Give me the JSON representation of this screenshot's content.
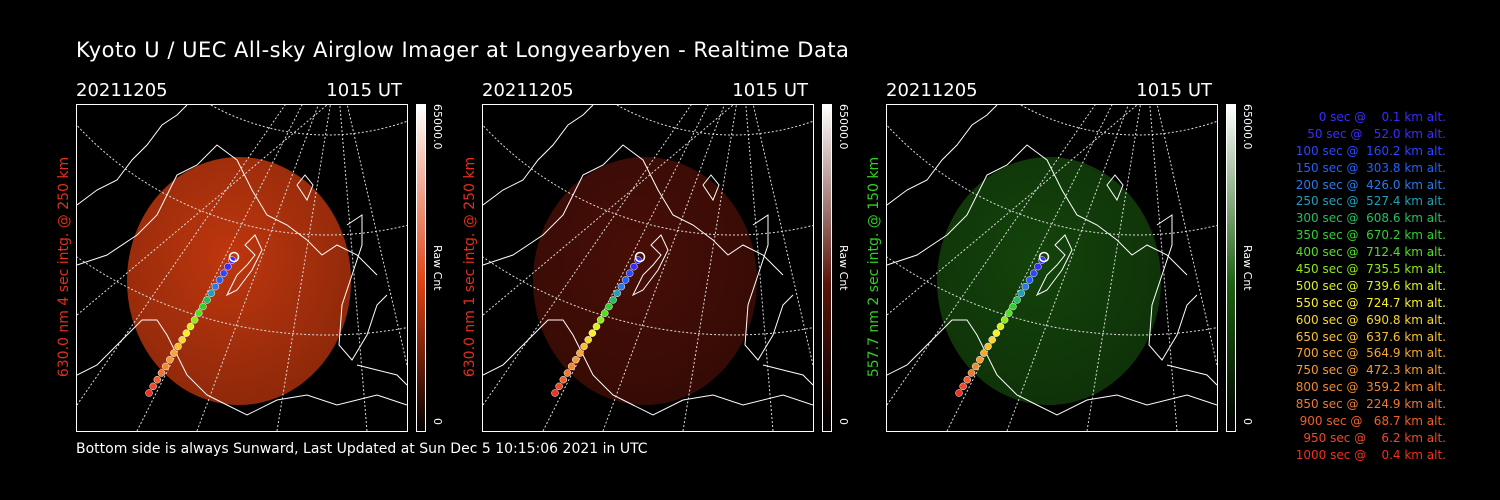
{
  "title": "Kyoto U / UEC All-sky Airglow Imager at Longyearbyen - Realtime Data",
  "footer": "Bottom side is always Sunward, Last Updated at Sun Dec  5 10:15:06 2021 in UTC",
  "panels": [
    {
      "date": "20211205",
      "time": "1015 UT",
      "ylabel": "630.0 nm 4 sec intg. @ 250 km",
      "ylabel_color": "#e0301a",
      "cbar_max": "65000.0",
      "cbar_min": "0",
      "cbar_label": "Raw Cnt",
      "glow": "#e04010",
      "glow_opacity": 0.85
    },
    {
      "date": "20211205",
      "time": "1015 UT",
      "ylabel": "630.0 nm 1 sec intg. @ 250 km",
      "ylabel_color": "#e0301a",
      "cbar_max": "65000.0",
      "cbar_min": "0",
      "cbar_label": "Raw Cnt",
      "glow": "#5a1208",
      "glow_opacity": 0.8
    },
    {
      "date": "20211205",
      "time": "1015 UT",
      "ylabel": "557.7 nm 2 sec intg. @ 150 km",
      "ylabel_color": "#30d020",
      "cbar_max": "65000.0",
      "cbar_min": "0",
      "cbar_label": "Raw Cnt",
      "glow": "#1c6010",
      "glow_opacity": 0.7
    }
  ],
  "legend": [
    {
      "text": "0 sec @    0.1 km alt.",
      "color": "#3a2cff"
    },
    {
      "text": "50 sec @   52.0 km alt.",
      "color": "#3a2cff"
    },
    {
      "text": "100 sec @  160.2 km alt.",
      "color": "#2b46ff"
    },
    {
      "text": "150 sec @  303.8 km alt.",
      "color": "#2060ff"
    },
    {
      "text": "200 sec @  426.0 km alt.",
      "color": "#2a7ae8"
    },
    {
      "text": "250 sec @  527.4 km alt.",
      "color": "#20a0b8"
    },
    {
      "text": "300 sec @  608.6 km alt.",
      "color": "#20c060"
    },
    {
      "text": "350 sec @  670.2 km alt.",
      "color": "#30d030"
    },
    {
      "text": "400 sec @  712.4 km alt.",
      "color": "#50e020"
    },
    {
      "text": "450 sec @  735.5 km alt.",
      "color": "#90e818"
    },
    {
      "text": "500 sec @  739.6 km alt.",
      "color": "#d8f020"
    },
    {
      "text": "550 sec @  724.7 km alt.",
      "color": "#f8f028"
    },
    {
      "text": "600 sec @  690.8 km alt.",
      "color": "#f8d828"
    },
    {
      "text": "650 sec @  637.6 km alt.",
      "color": "#f8c030"
    },
    {
      "text": "700 sec @  564.9 km alt.",
      "color": "#f8a830"
    },
    {
      "text": "750 sec @  472.3 km alt.",
      "color": "#f89830"
    },
    {
      "text": "800 sec @  359.2 km alt.",
      "color": "#f08830"
    },
    {
      "text": "850 sec @  224.9 km alt.",
      "color": "#f07830"
    },
    {
      "text": "900 sec @   68.7 km alt.",
      "color": "#f06028"
    },
    {
      "text": "950 sec @    6.2 km alt.",
      "color": "#f04828"
    },
    {
      "text": "1000 sec @    0.4 km alt.",
      "color": "#f03020"
    }
  ]
}
